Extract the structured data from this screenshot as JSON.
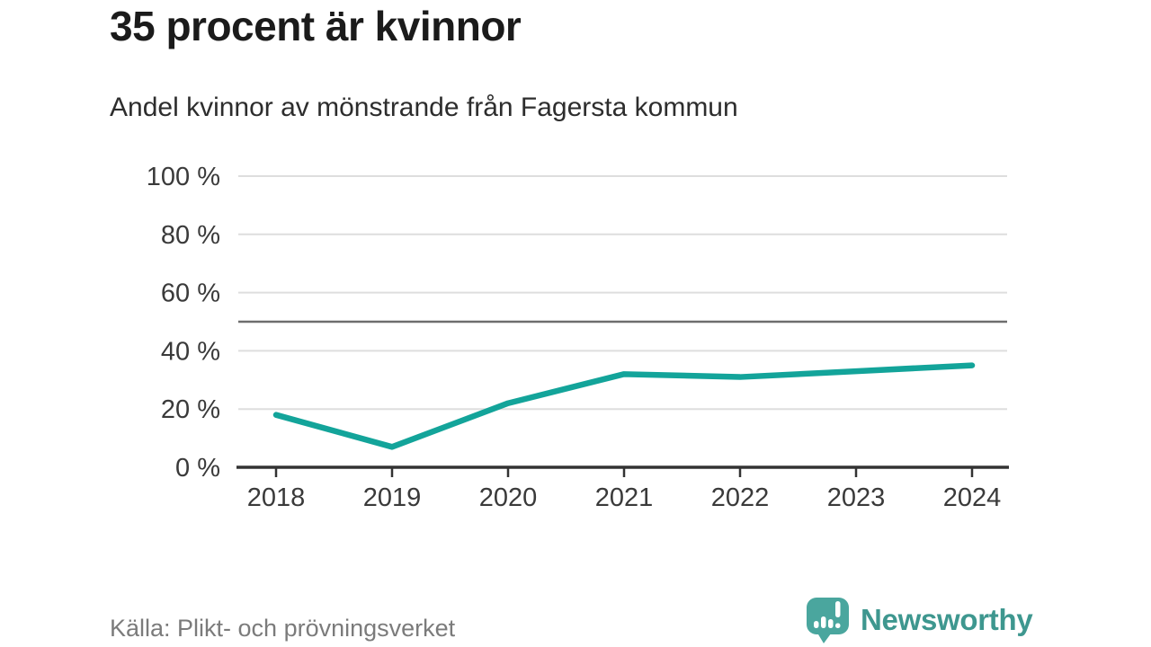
{
  "chart_data": {
    "type": "line",
    "title": "35 procent är kvinnor",
    "subtitle": "Andel kvinnor av mönstrande från Fagersta kommun",
    "categories": [
      "2018",
      "2019",
      "2020",
      "2021",
      "2022",
      "2023",
      "2024"
    ],
    "series": [
      {
        "name": "Andel kvinnor av mönstrande (%)",
        "values": [
          18,
          7,
          22,
          32,
          31,
          33,
          35
        ]
      }
    ],
    "xlabel": "",
    "ylabel": "",
    "ylim": [
      0,
      100
    ],
    "yticks": [
      0,
      20,
      40,
      60,
      80,
      100
    ],
    "ytick_labels": [
      "0 %",
      "20 %",
      "40 %",
      "60 %",
      "80 %",
      "100 %"
    ],
    "reference_line": 50,
    "grid": true,
    "legend": "none"
  },
  "footer": {
    "source": "Källa: Plikt- och prövningsverket",
    "brand": "Newsworthy"
  },
  "colors": {
    "accent_teal": "#13a49a",
    "brand_teal": "#3e978f",
    "logo_teal": "#4aa69e",
    "logo_bars": "#ffffff",
    "grid": "#dedede",
    "reference": "#6e6e6e",
    "axis": "#333333",
    "tick_label": "#3a3a3a",
    "title_text": "#1b1b1b",
    "source_text": "#7b7b7b"
  }
}
